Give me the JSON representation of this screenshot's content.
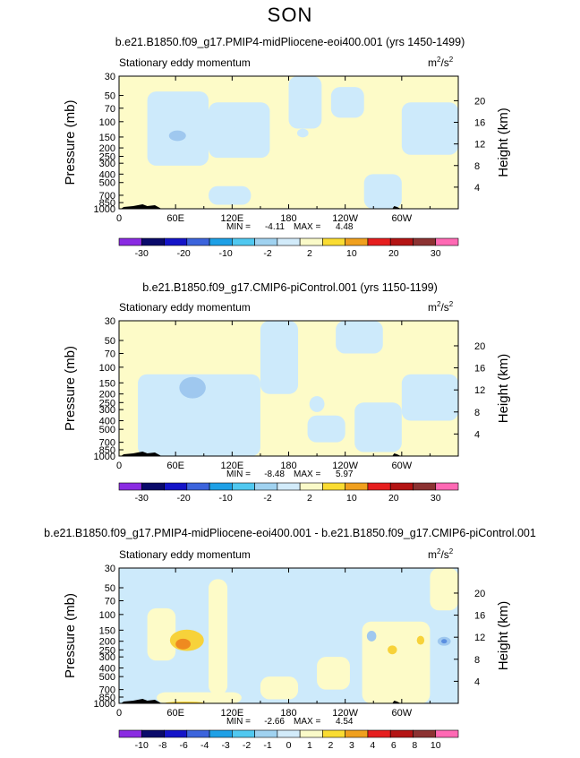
{
  "season": "SON",
  "colors": {
    "pale_blue": "#cdeafb",
    "light_blue": "#9fc8ef",
    "mid_blue": "#5b8fe0",
    "pale_yellow": "#fdfbc8",
    "yellow": "#f7d23a",
    "orange": "#ef8a20",
    "terrain": "#000000"
  },
  "colorbar_colors": [
    "#8a2be2",
    "#0a0a6a",
    "#1414c8",
    "#3c64dc",
    "#1ea0e6",
    "#50c8f0",
    "#a0d2f0",
    "#d2ebfa",
    "#fafac8",
    "#fadc32",
    "#f0a01e",
    "#e61e1e",
    "#b41414",
    "#8c3232",
    "#ff69b4"
  ],
  "chart_data": [
    {
      "type": "heatmap",
      "title": "b.e21.B1850.f09_g17.PMIP4-midPliocene-eoi400.001 (yrs 1450-1499)",
      "left_label": "Stationary eddy momentum",
      "units_base": "m",
      "units_exp1": "2",
      "units_mid": "/s",
      "units_exp2": "2",
      "xlabel": "",
      "ylabel": "Pressure (mb)",
      "y2label": "Height (km)",
      "x_ticks": [
        "0",
        "60E",
        "120E",
        "180",
        "120W",
        "60W"
      ],
      "x_ticks_lon": [
        0,
        60,
        120,
        180,
        240,
        300
      ],
      "xlim": [
        0,
        360
      ],
      "y_ticks": [
        "30",
        "50",
        "70",
        "100",
        "150",
        "200",
        "250",
        "300",
        "400",
        "500",
        "700",
        "850",
        "1000"
      ],
      "y_ticks_p": [
        30,
        50,
        70,
        100,
        150,
        200,
        250,
        300,
        400,
        500,
        700,
        850,
        1000
      ],
      "ylim": [
        1000,
        30
      ],
      "y2_ticks": [
        "20",
        "16",
        "12",
        "8",
        "4"
      ],
      "y2_ticks_km": [
        20,
        16,
        12,
        8,
        4
      ],
      "min_label": "MIN =",
      "min_value": "-4.11",
      "max_label": "MAX =",
      "max_value": "4.48",
      "colorbar_labels": [
        "-30",
        "-20",
        "-10",
        "-2",
        "2",
        "10",
        "20",
        "30"
      ]
    },
    {
      "type": "heatmap",
      "title": "b.e21.B1850.f09_g17.CMIP6-piControl.001 (yrs 1150-1199)",
      "left_label": "Stationary eddy momentum",
      "units_base": "m",
      "units_exp1": "2",
      "units_mid": "/s",
      "units_exp2": "2",
      "xlabel": "",
      "ylabel": "Pressure (mb)",
      "y2label": "Height (km)",
      "x_ticks": [
        "0",
        "60E",
        "120E",
        "180",
        "120W",
        "60W"
      ],
      "x_ticks_lon": [
        0,
        60,
        120,
        180,
        240,
        300
      ],
      "xlim": [
        0,
        360
      ],
      "y_ticks": [
        "30",
        "50",
        "70",
        "100",
        "150",
        "200",
        "250",
        "300",
        "400",
        "500",
        "700",
        "850",
        "1000"
      ],
      "y_ticks_p": [
        30,
        50,
        70,
        100,
        150,
        200,
        250,
        300,
        400,
        500,
        700,
        850,
        1000
      ],
      "ylim": [
        1000,
        30
      ],
      "y2_ticks": [
        "20",
        "16",
        "12",
        "8",
        "4"
      ],
      "y2_ticks_km": [
        20,
        16,
        12,
        8,
        4
      ],
      "min_label": "MIN =",
      "min_value": "-8.48",
      "max_label": "MAX =",
      "max_value": "5.97",
      "colorbar_labels": [
        "-30",
        "-20",
        "-10",
        "-2",
        "2",
        "10",
        "20",
        "30"
      ]
    },
    {
      "type": "heatmap",
      "title": "b.e21.B1850.f09_g17.PMIP4-midPliocene-eoi400.001 - b.e21.B1850.f09_g17.CMIP6-piControl.001",
      "left_label": "Stationary eddy momentum",
      "units_base": "m",
      "units_exp1": "2",
      "units_mid": "/s",
      "units_exp2": "2",
      "xlabel": "",
      "ylabel": "Pressure (mb)",
      "y2label": "Height (km)",
      "x_ticks": [
        "0",
        "60E",
        "120E",
        "180",
        "120W",
        "60W"
      ],
      "x_ticks_lon": [
        0,
        60,
        120,
        180,
        240,
        300
      ],
      "xlim": [
        0,
        360
      ],
      "y_ticks": [
        "30",
        "50",
        "70",
        "100",
        "150",
        "200",
        "250",
        "300",
        "400",
        "500",
        "700",
        "850",
        "1000"
      ],
      "y_ticks_p": [
        30,
        50,
        70,
        100,
        150,
        200,
        250,
        300,
        400,
        500,
        700,
        850,
        1000
      ],
      "ylim": [
        1000,
        30
      ],
      "y2_ticks": [
        "20",
        "16",
        "12",
        "8",
        "4"
      ],
      "y2_ticks_km": [
        20,
        16,
        12,
        8,
        4
      ],
      "min_label": "MIN =",
      "min_value": "-2.66",
      "max_label": "MAX =",
      "max_value": "4.54",
      "colorbar_labels": [
        "-10",
        "-8",
        "-6",
        "-4",
        "-3",
        "-2",
        "-1",
        "0",
        "1",
        "2",
        "3",
        "4",
        "6",
        "8",
        "10"
      ]
    }
  ]
}
